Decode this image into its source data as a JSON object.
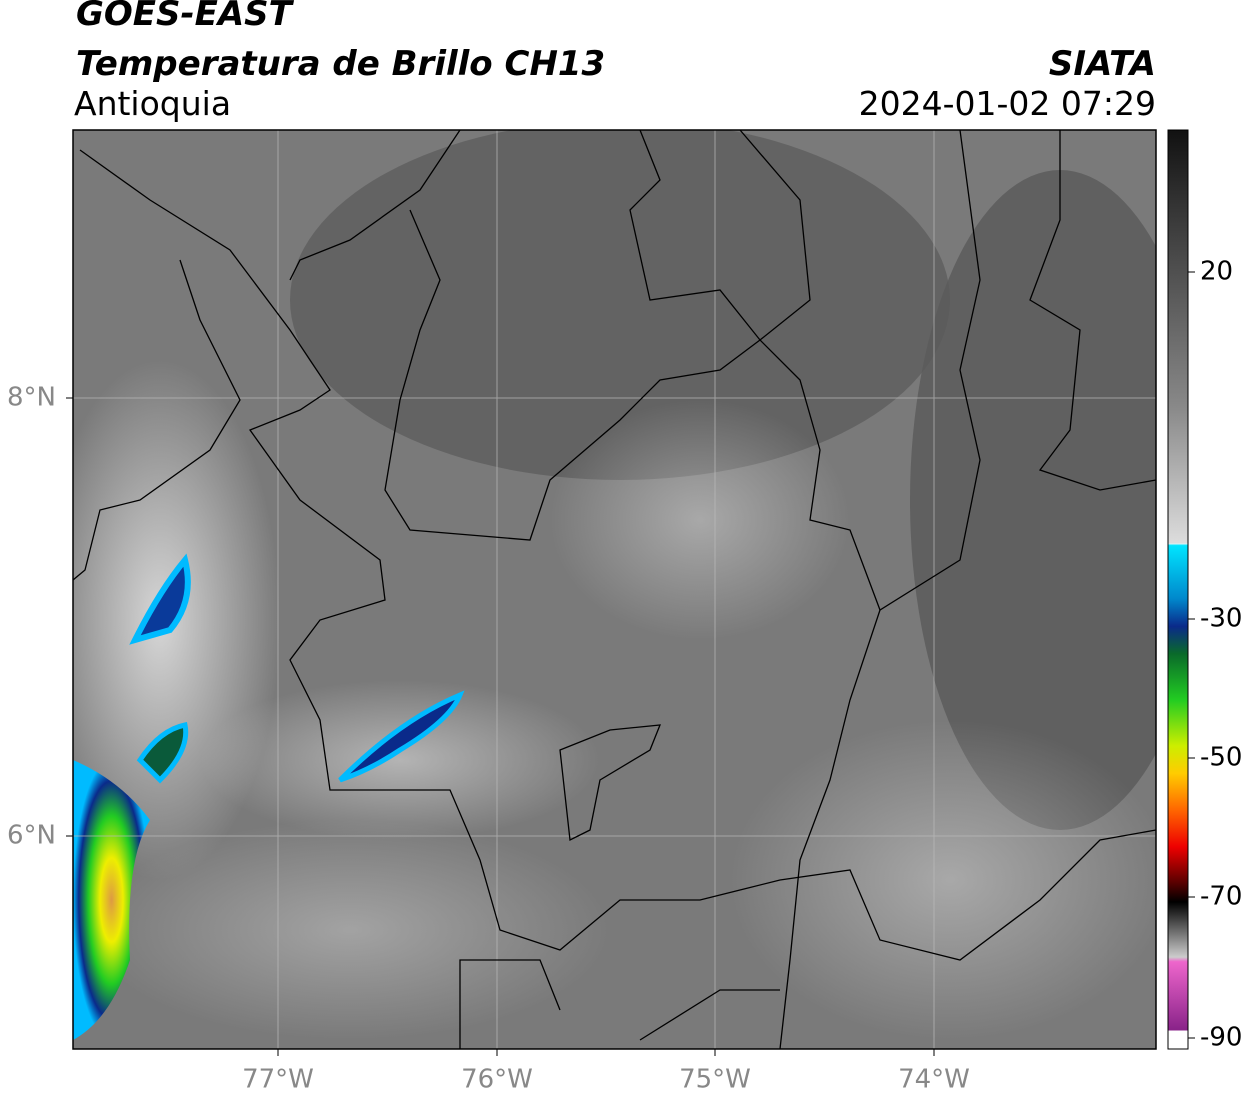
{
  "header": {
    "title": "GOES-EAST",
    "subtitle": "Temperatura de Brillo CH13",
    "region": "Antioquia",
    "source": "SIATA",
    "datetime": "2024-01-02 07:29"
  },
  "map": {
    "lat_labels": [
      "8°N",
      "6°N"
    ],
    "lon_labels": [
      "77°W",
      "76°W",
      "75°W",
      "74°W"
    ]
  },
  "colorbar": {
    "labels": [
      "20",
      "-30",
      "-50",
      "-70",
      "-90"
    ]
  }
}
